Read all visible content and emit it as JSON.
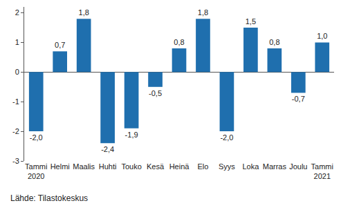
{
  "chart_data": {
    "type": "bar",
    "categories": [
      "Tammi 2020",
      "Helmi",
      "Maalis",
      "Huhti",
      "Touko",
      "Kesä",
      "Heinä",
      "Elo",
      "Syys",
      "Loka",
      "Marras",
      "Joulu",
      "Tammi 2021"
    ],
    "values": [
      -2.0,
      0.7,
      1.8,
      -2.4,
      -1.9,
      -0.5,
      0.8,
      1.8,
      -2.0,
      1.5,
      0.8,
      -0.7,
      1.0
    ],
    "value_labels": [
      "-2,0",
      "0,7",
      "1,8",
      "-2,4",
      "-1,9",
      "-0,5",
      "0,8",
      "1,8",
      "-2,0",
      "1,5",
      "0,8",
      "-0,7",
      "1,0"
    ],
    "data_labels": true,
    "color": "#1f6fae",
    "ylim": [
      -3,
      2.2
    ],
    "yticks": [
      -3,
      -2,
      -1,
      0,
      1,
      2
    ],
    "grid": false,
    "annotations": [
      "Lähde: Tilastokeskus"
    ]
  }
}
